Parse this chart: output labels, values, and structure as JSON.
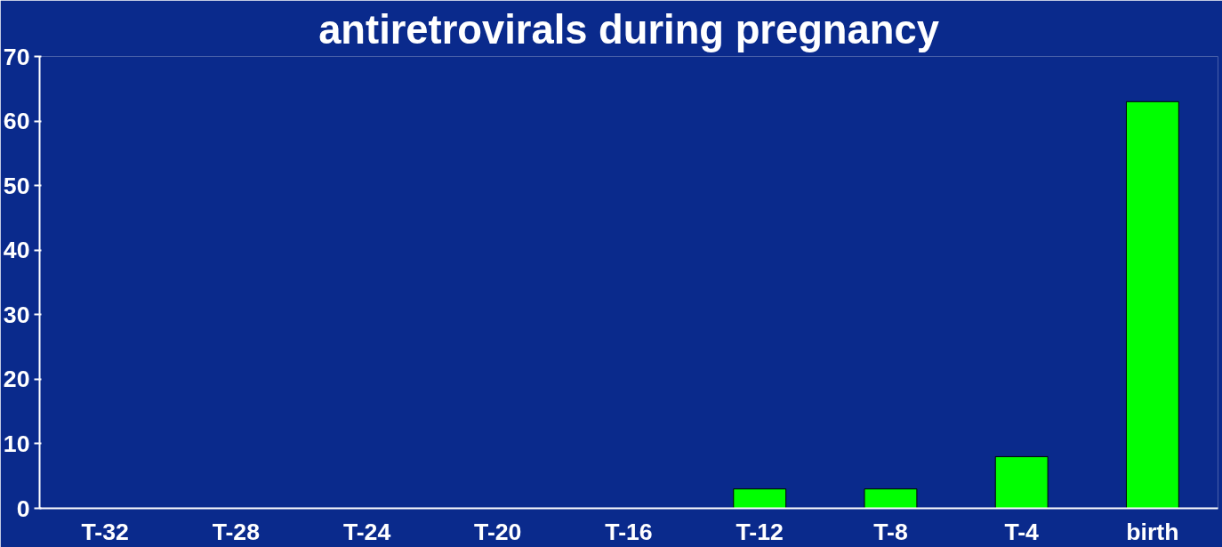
{
  "chart_data": {
    "type": "bar",
    "title": "antiretrovirals during pregnancy",
    "categories": [
      "T-32",
      "T-28",
      "T-24",
      "T-20",
      "T-16",
      "T-12",
      "T-8",
      "T-4",
      "birth"
    ],
    "values": [
      0,
      0,
      0,
      0,
      0,
      3,
      3,
      8,
      63
    ],
    "color": "#00ff00",
    "ylim": [
      0,
      70
    ],
    "yticks": [
      0,
      10,
      20,
      30,
      40,
      50,
      60,
      70
    ],
    "grid": false
  }
}
